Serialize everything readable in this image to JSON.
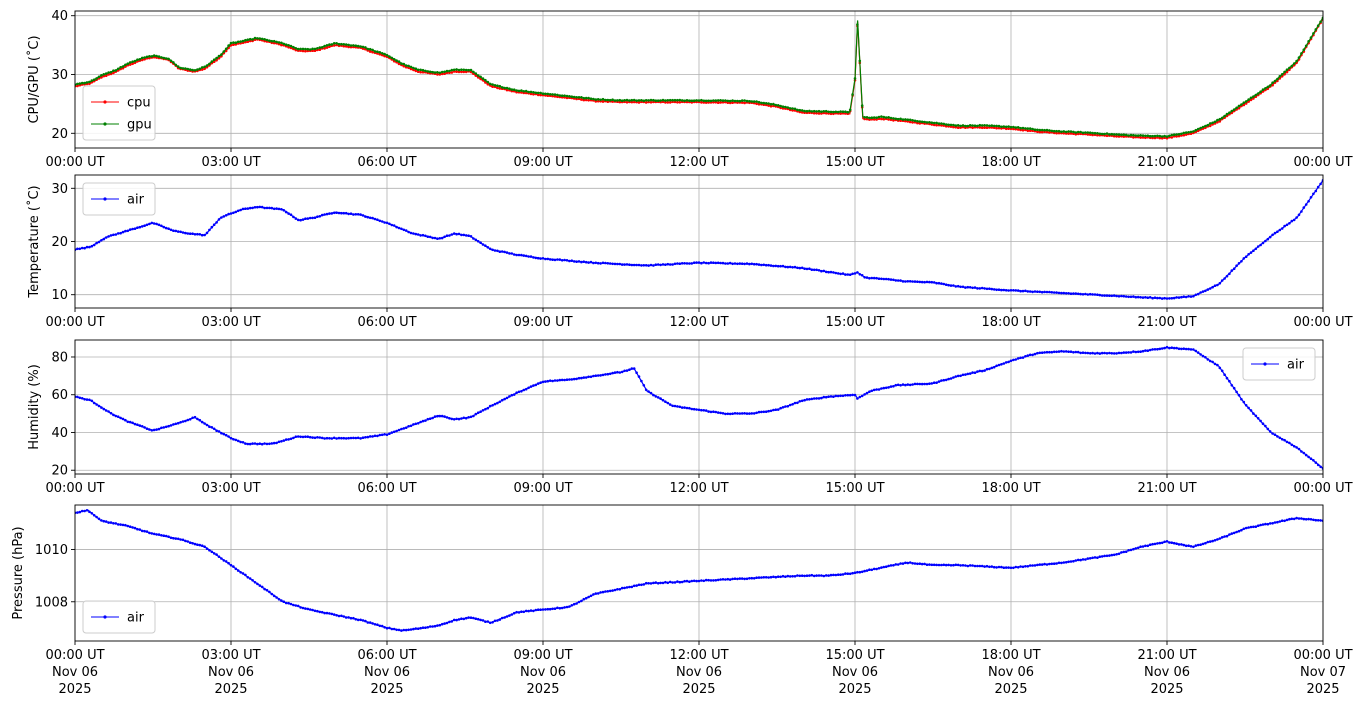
{
  "chart_data": [
    {
      "type": "line",
      "ylabel": "CPU/GPU (˚C)",
      "ylim": [
        17.5,
        40.8
      ],
      "yticks": [
        20,
        30,
        40
      ],
      "xlim": [
        0,
        24
      ],
      "xticks": [
        {
          "h": 0,
          "label": "00:00 UT"
        },
        {
          "h": 3,
          "label": "03:00 UT"
        },
        {
          "h": 6,
          "label": "06:00 UT"
        },
        {
          "h": 9,
          "label": "09:00 UT"
        },
        {
          "h": 12,
          "label": "12:00 UT"
        },
        {
          "h": 15,
          "label": "15:00 UT"
        },
        {
          "h": 18,
          "label": "18:00 UT"
        },
        {
          "h": 21,
          "label": "21:00 UT"
        },
        {
          "h": 24,
          "label": "00:00 UT"
        }
      ],
      "grid": true,
      "legend": "lower-left",
      "series": [
        {
          "name": "cpu",
          "color": "#ff0000",
          "x": [
            0,
            0.3,
            0.5,
            0.8,
            1.0,
            1.3,
            1.5,
            1.8,
            2.0,
            2.3,
            2.5,
            2.8,
            3.0,
            3.3,
            3.5,
            4.0,
            4.3,
            4.6,
            5.0,
            5.5,
            6.0,
            6.3,
            6.6,
            7.0,
            7.3,
            7.6,
            8.0,
            8.5,
            9.0,
            9.5,
            10.0,
            10.5,
            11.0,
            12.0,
            13.0,
            13.5,
            14.0,
            14.9,
            15.0,
            15.05,
            15.15,
            15.3,
            15.5,
            16.0,
            16.5,
            17.0,
            17.5,
            18.0,
            18.5,
            19.0,
            19.5,
            20.0,
            20.5,
            21.0,
            21.5,
            22.0,
            22.5,
            23.0,
            23.5,
            24.0
          ],
          "y": [
            28,
            28.5,
            29.5,
            30.5,
            31.5,
            32.5,
            33,
            32.5,
            31,
            30.5,
            31,
            33,
            35,
            35.5,
            36,
            35,
            34,
            34,
            35,
            34.5,
            33,
            31.5,
            30.5,
            30,
            30.5,
            30.5,
            28,
            27,
            26.5,
            26,
            25.5,
            25.3,
            25.3,
            25.3,
            25.2,
            24.5,
            23.5,
            23.3,
            29,
            39,
            22.5,
            22.3,
            22.5,
            22,
            21.5,
            21,
            21,
            20.8,
            20.3,
            20,
            19.8,
            19.5,
            19.3,
            19.2,
            20,
            22,
            25,
            28,
            32,
            39.5
          ]
        },
        {
          "name": "gpu",
          "color": "#008000",
          "x": [
            0,
            0.3,
            0.5,
            0.8,
            1.0,
            1.3,
            1.5,
            1.8,
            2.0,
            2.3,
            2.5,
            2.8,
            3.0,
            3.3,
            3.5,
            4.0,
            4.3,
            4.6,
            5.0,
            5.5,
            6.0,
            6.3,
            6.6,
            7.0,
            7.3,
            7.6,
            8.0,
            8.5,
            9.0,
            9.5,
            10.0,
            10.5,
            11.0,
            12.0,
            13.0,
            13.5,
            14.0,
            14.9,
            15.0,
            15.05,
            15.15,
            15.3,
            15.5,
            16.0,
            16.5,
            17.0,
            17.5,
            18.0,
            18.5,
            19.0,
            19.5,
            20.0,
            20.5,
            21.0,
            21.5,
            22.0,
            22.5,
            23.0,
            23.5,
            24.0
          ],
          "y": [
            28.3,
            28.8,
            29.8,
            30.8,
            31.8,
            32.8,
            33.2,
            32.7,
            31.2,
            30.7,
            31.3,
            33.3,
            35.3,
            35.8,
            36.2,
            35.3,
            34.3,
            34.3,
            35.3,
            34.8,
            33.3,
            31.8,
            30.8,
            30.3,
            30.8,
            30.8,
            28.3,
            27.3,
            26.8,
            26.3,
            25.8,
            25.6,
            25.6,
            25.6,
            25.5,
            24.8,
            23.8,
            23.6,
            29.3,
            39.2,
            22.8,
            22.6,
            22.8,
            22.3,
            21.8,
            21.3,
            21.3,
            21.1,
            20.6,
            20.3,
            20.1,
            19.8,
            19.6,
            19.5,
            20.3,
            22.3,
            25.3,
            28.3,
            32.3,
            39.7
          ]
        }
      ]
    },
    {
      "type": "line",
      "ylabel": "Temperature (˚C)",
      "ylim": [
        7.5,
        32.5
      ],
      "yticks": [
        10,
        20,
        30
      ],
      "xlim": [
        0,
        24
      ],
      "xticks": [
        {
          "h": 0,
          "label": "00:00 UT"
        },
        {
          "h": 3,
          "label": "03:00 UT"
        },
        {
          "h": 6,
          "label": "06:00 UT"
        },
        {
          "h": 9,
          "label": "09:00 UT"
        },
        {
          "h": 12,
          "label": "12:00 UT"
        },
        {
          "h": 15,
          "label": "15:00 UT"
        },
        {
          "h": 18,
          "label": "18:00 UT"
        },
        {
          "h": 21,
          "label": "21:00 UT"
        },
        {
          "h": 24,
          "label": "00:00 UT"
        }
      ],
      "grid": true,
      "legend": "upper-left",
      "series": [
        {
          "name": "air",
          "color": "#0000ff",
          "x": [
            0,
            0.3,
            0.6,
            1.0,
            1.5,
            1.9,
            2.2,
            2.5,
            2.8,
            3.2,
            3.5,
            4.0,
            4.3,
            4.6,
            5.0,
            5.5,
            6.0,
            6.5,
            7.0,
            7.3,
            7.6,
            8.0,
            8.5,
            9.0,
            10.0,
            11.0,
            12.0,
            13.0,
            14.0,
            14.9,
            15.05,
            15.2,
            15.5,
            16.0,
            16.5,
            17.0,
            18.0,
            19.0,
            20.0,
            20.5,
            21.0,
            21.5,
            22.0,
            22.5,
            23.0,
            23.5,
            24.0
          ],
          "y": [
            18.5,
            19,
            20.8,
            22,
            23.5,
            22,
            21.5,
            21.2,
            24.5,
            26,
            26.5,
            26,
            24,
            24.5,
            25.5,
            25,
            23.5,
            21.5,
            20.5,
            21.5,
            21,
            18.5,
            17.5,
            16.8,
            16,
            15.5,
            16,
            15.8,
            15,
            13.7,
            14.2,
            13.2,
            13,
            12.5,
            12.3,
            11.5,
            10.8,
            10.3,
            9.8,
            9.5,
            9.3,
            9.7,
            12,
            17,
            21,
            24.5,
            31.5
          ]
        }
      ]
    },
    {
      "type": "line",
      "ylabel": "Humidity (%)",
      "ylim": [
        18,
        89
      ],
      "yticks": [
        20,
        40,
        60,
        80
      ],
      "xlim": [
        0,
        24
      ],
      "xticks": [
        {
          "h": 0,
          "label": "00:00 UT"
        },
        {
          "h": 3,
          "label": "03:00 UT"
        },
        {
          "h": 6,
          "label": "06:00 UT"
        },
        {
          "h": 9,
          "label": "09:00 UT"
        },
        {
          "h": 12,
          "label": "12:00 UT"
        },
        {
          "h": 15,
          "label": "15:00 UT"
        },
        {
          "h": 18,
          "label": "18:00 UT"
        },
        {
          "h": 21,
          "label": "21:00 UT"
        },
        {
          "h": 24,
          "label": "00:00 UT"
        }
      ],
      "grid": true,
      "legend": "upper-right",
      "series": [
        {
          "name": "air",
          "color": "#0000ff",
          "x": [
            0,
            0.3,
            0.7,
            1.0,
            1.5,
            2.0,
            2.3,
            2.6,
            3.0,
            3.3,
            3.8,
            4.3,
            4.8,
            5.5,
            6.0,
            6.5,
            7.0,
            7.3,
            7.6,
            8.0,
            8.5,
            9.0,
            9.5,
            10.0,
            10.5,
            10.75,
            11.0,
            11.5,
            12.0,
            12.5,
            13.0,
            13.5,
            14.0,
            14.5,
            15.0,
            15.05,
            15.3,
            15.8,
            16.5,
            17.0,
            17.5,
            18.0,
            18.5,
            19.0,
            19.5,
            20.0,
            20.5,
            21.0,
            21.5,
            22.0,
            22.5,
            23.0,
            23.5,
            24.0
          ],
          "y": [
            59,
            57,
            50,
            46,
            41,
            45,
            48,
            43,
            37,
            34,
            34,
            38,
            37,
            37,
            39,
            44,
            49,
            47,
            48,
            54,
            61,
            67,
            68,
            70,
            72,
            74,
            62,
            54,
            52,
            50,
            50,
            52,
            57,
            59,
            60,
            58,
            62,
            65,
            66,
            70,
            73,
            78,
            82,
            83,
            82,
            82,
            83,
            85,
            84,
            75,
            55,
            40,
            32,
            21
          ]
        }
      ]
    },
    {
      "type": "line",
      "ylabel": "Pressure (hPa)",
      "ylim": [
        1006.5,
        1011.7
      ],
      "yticks": [
        1008,
        1010
      ],
      "xlim": [
        0,
        24
      ],
      "xticks": [
        {
          "h": 0,
          "label": "00:00 UT",
          "sub1": "Nov 06",
          "sub2": "2025"
        },
        {
          "h": 3,
          "label": "03:00 UT",
          "sub1": "Nov 06",
          "sub2": "2025"
        },
        {
          "h": 6,
          "label": "06:00 UT",
          "sub1": "Nov 06",
          "sub2": "2025"
        },
        {
          "h": 9,
          "label": "09:00 UT",
          "sub1": "Nov 06",
          "sub2": "2025"
        },
        {
          "h": 12,
          "label": "12:00 UT",
          "sub1": "Nov 06",
          "sub2": "2025"
        },
        {
          "h": 15,
          "label": "15:00 UT",
          "sub1": "Nov 06",
          "sub2": "2025"
        },
        {
          "h": 18,
          "label": "18:00 UT",
          "sub1": "Nov 06",
          "sub2": "2025"
        },
        {
          "h": 21,
          "label": "21:00 UT",
          "sub1": "Nov 06",
          "sub2": "2025"
        },
        {
          "h": 24,
          "label": "00:00 UT",
          "sub1": "Nov 07",
          "sub2": "2025"
        }
      ],
      "grid": true,
      "legend": "lower-left",
      "series": [
        {
          "name": "air",
          "color": "#0000ff",
          "x": [
            0,
            0.25,
            0.5,
            1.0,
            1.5,
            2.0,
            2.5,
            3.0,
            3.5,
            4.0,
            4.5,
            5.0,
            5.5,
            6.0,
            6.3,
            6.7,
            7.0,
            7.3,
            7.6,
            8.0,
            8.5,
            9.0,
            9.5,
            10.0,
            11.0,
            12.0,
            13.0,
            14.0,
            14.5,
            15.0,
            15.5,
            16.0,
            16.5,
            17.0,
            18.0,
            19.0,
            20.0,
            20.5,
            21.0,
            21.5,
            22.0,
            22.5,
            23.0,
            23.5,
            24.0
          ],
          "y": [
            1011.4,
            1011.5,
            1011.1,
            1010.9,
            1010.6,
            1010.4,
            1010.1,
            1009.4,
            1008.7,
            1008.0,
            1007.7,
            1007.5,
            1007.3,
            1007.0,
            1006.9,
            1007.0,
            1007.1,
            1007.3,
            1007.4,
            1007.2,
            1007.6,
            1007.7,
            1007.8,
            1008.3,
            1008.7,
            1008.8,
            1008.9,
            1009.0,
            1009.0,
            1009.1,
            1009.3,
            1009.5,
            1009.4,
            1009.4,
            1009.3,
            1009.5,
            1009.8,
            1010.1,
            1010.3,
            1010.1,
            1010.4,
            1010.8,
            1011.0,
            1011.2,
            1011.1
          ]
        }
      ]
    }
  ]
}
